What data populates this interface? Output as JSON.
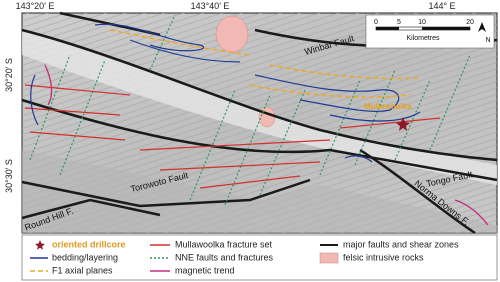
{
  "coordinates": {
    "top": [
      "143°20' E",
      "143°40' E",
      "144° E"
    ],
    "left": [
      "30°20' S",
      "30°30' S"
    ]
  },
  "scale_bar": {
    "ticks": [
      "0",
      "5",
      "10",
      "20"
    ],
    "unit": "Kilometres",
    "north": "N"
  },
  "map_labels": {
    "winbar": "Winbar Fault",
    "mullawoolka": "Mullawoolka",
    "tongo": "Tongo Fault",
    "norma": "Norma Downs F.",
    "torowoto": "Torowoto Fault",
    "round_hill": "Round Hill F."
  },
  "legend": [
    "oriented drillcore",
    "bedding/layering",
    "F1 axial planes",
    "Mullawoolka fracture set",
    "NNE faults and fractures",
    "magnetic trend",
    "major faults and shear zones",
    "felsic intrusive rocks"
  ]
}
